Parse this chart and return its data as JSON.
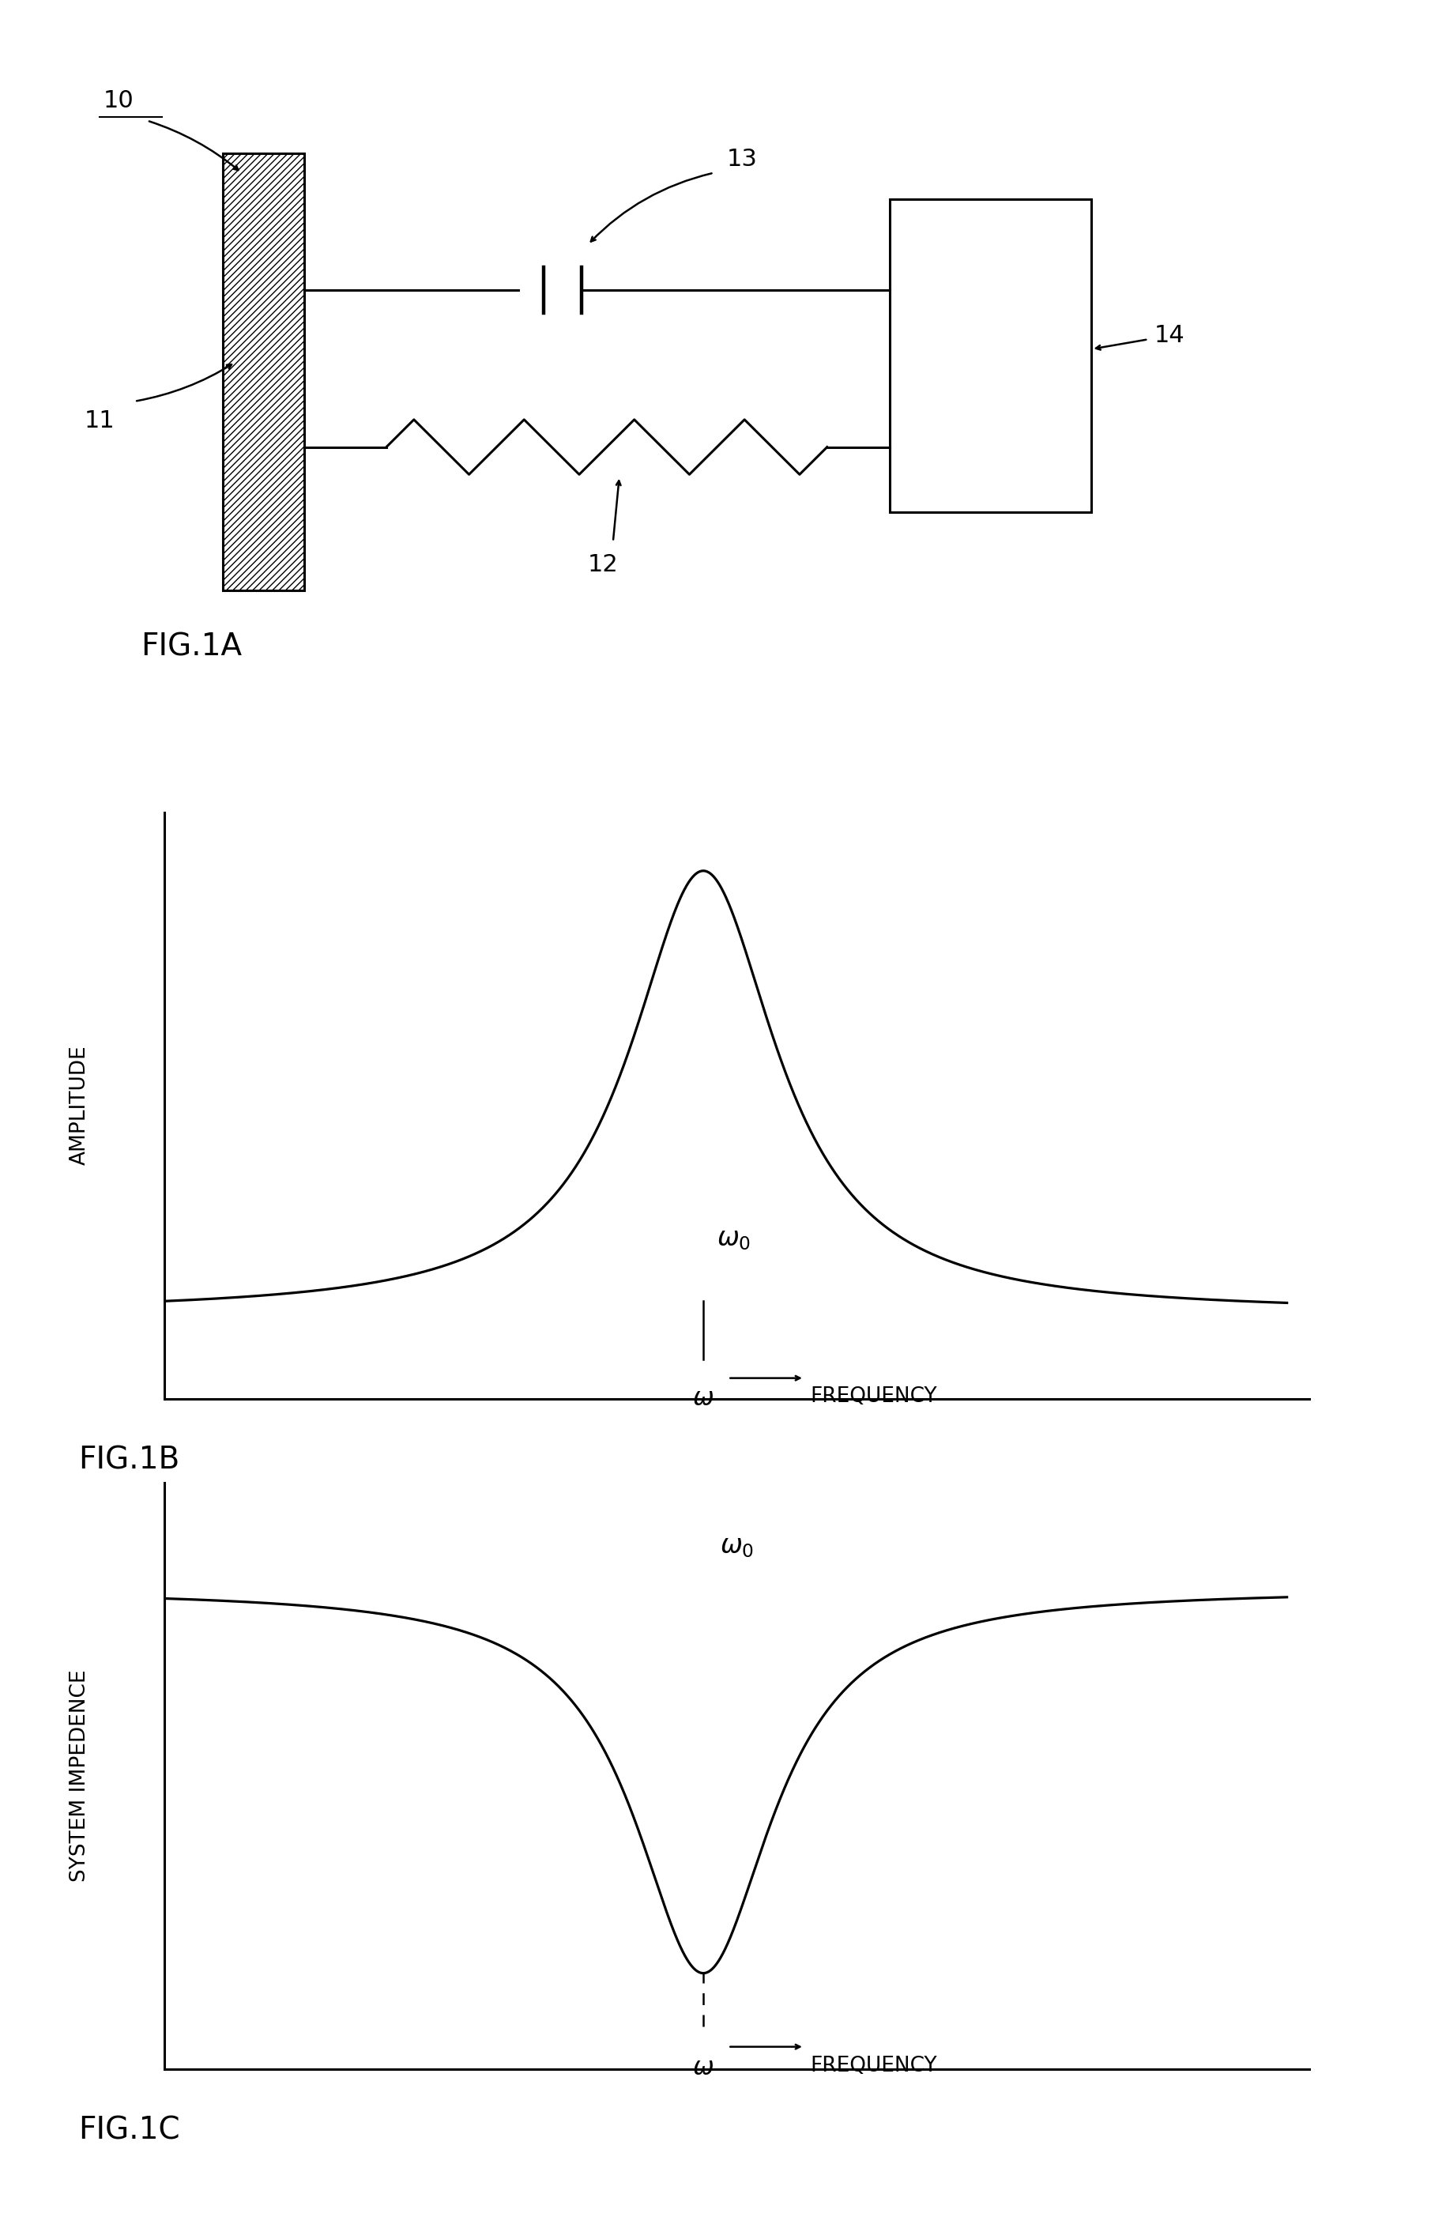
{
  "fig_width": 18.11,
  "fig_height": 28.0,
  "bg_color": "#ffffff",
  "line_color": "#000000",
  "label_10": "10",
  "label_11": "11",
  "label_12": "12",
  "label_13": "13",
  "label_14": "14",
  "fig1a_label": "FIG.1A",
  "fig1b_label": "FIG.1B",
  "fig1c_label": "FIG.1C",
  "amplitude_ylabel": "AMPLITUDE",
  "impedance_ylabel": "SYSTEM IMPEDENCE",
  "frequency_xlabel": "FREQUENCY"
}
